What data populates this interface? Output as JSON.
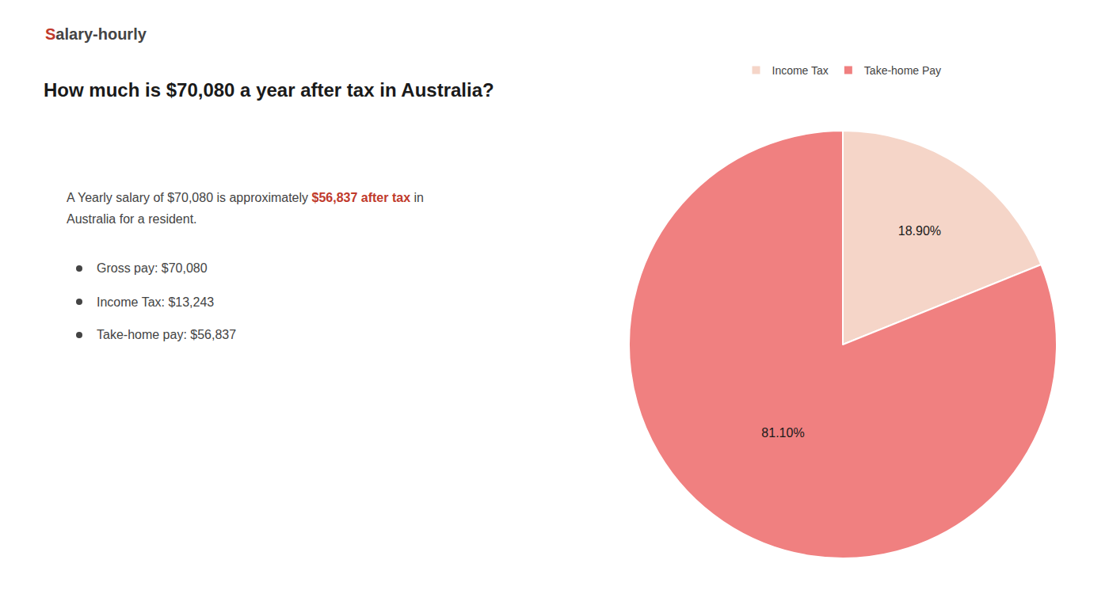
{
  "chart_data": {
    "type": "pie",
    "title": "How much is $70,080 a year after tax in Australia?",
    "categories": [
      "Income Tax",
      "Take-home Pay"
    ],
    "values": [
      18.9,
      81.1
    ],
    "value_labels": [
      "18.90%",
      "81.10%"
    ],
    "data_labels": true,
    "colors": [
      "#f5d5c8",
      "#f08080"
    ],
    "legend": "top",
    "annotations": [
      [
        {
          "text": "S",
          "color": "#c0392b"
        },
        {
          "text": "alary-hourly"
        }
      ],
      [
        {
          "text": "A Yearly salary of $70,080 is approximately "
        },
        {
          "text": "$56,837 after tax",
          "color": "#c0392b"
        },
        {
          "text": " in"
        }
      ],
      [
        {
          "text": "Australia for a resident."
        }
      ],
      [
        {
          "text": "Gross pay: $70,080"
        }
      ],
      [
        {
          "text": "Income Tax: $13,243"
        }
      ],
      [
        {
          "text": "Take-home pay: $56,837"
        }
      ]
    ]
  }
}
